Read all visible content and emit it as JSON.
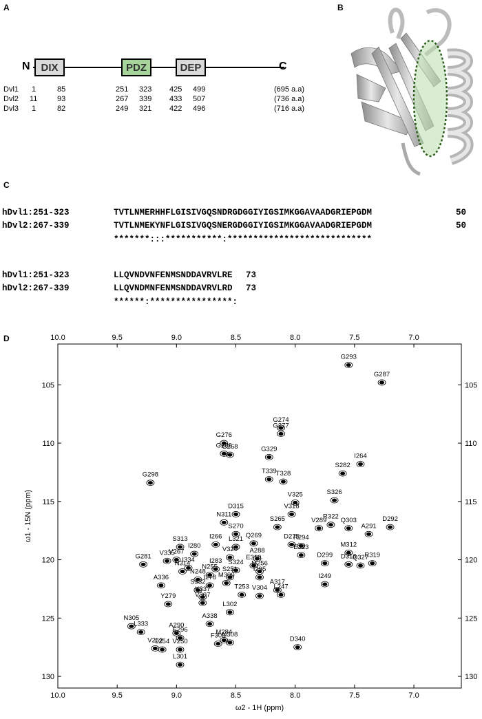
{
  "panels": {
    "a": "A",
    "b": "B",
    "c": "C",
    "d": "D"
  },
  "panel_a": {
    "n_label": "N",
    "c_label": "C",
    "domains": [
      {
        "name": "DIX",
        "color": "#d9d9d9"
      },
      {
        "name": "PDZ",
        "color": "#a6d49a"
      },
      {
        "name": "DEP",
        "color": "#d9d9d9"
      }
    ],
    "rows": [
      {
        "name": "Dvl1",
        "dix": [
          "1",
          "85"
        ],
        "pdz": [
          "251",
          "323"
        ],
        "dep": [
          "425",
          "499"
        ],
        "len": "(695 a.a)"
      },
      {
        "name": "Dvl2",
        "dix": [
          "11",
          "93"
        ],
        "pdz": [
          "267",
          "339"
        ],
        "dep": [
          "433",
          "507"
        ],
        "len": "(736 a.a)"
      },
      {
        "name": "Dvl3",
        "dix": [
          "1",
          "82"
        ],
        "pdz": [
          "249",
          "321"
        ],
        "dep": [
          "422",
          "496"
        ],
        "len": "(716 a.a)"
      }
    ]
  },
  "panel_c": {
    "block1": [
      {
        "label": "hDvl1:251-323",
        "seq": "TVTLNMERHHFLGISIVGQSNDRGDGGIYIGSIMKGGAVAADGRIEPGDM",
        "num": "50"
      },
      {
        "label": "hDvl2:267-339",
        "seq": "TVTLNMEKYNFLGISIVGQSNERGDGGIYIGSIMKGGAVAADGRIEPGDM",
        "num": "50"
      }
    ],
    "cons1": "*******:::***********:****************************",
    "block2": [
      {
        "label": "hDvl1:251-323",
        "seq": "LLQVNDVNFENMSNDDAVRVLRE",
        "num": "73"
      },
      {
        "label": "hDvl2:267-339",
        "seq": "LLQVNDMNFENMSNDDAVRVLRD",
        "num": "73"
      }
    ],
    "cons2": "******:****************:"
  },
  "chart_data": {
    "type": "scatter",
    "title": "",
    "xlabel": "ω2 - 1H (ppm)",
    "ylabel": "ω1 - 15N (ppm)",
    "xlim": [
      10.0,
      6.6
    ],
    "ylim": [
      101.5,
      131.0
    ],
    "x_ticks": [
      10.0,
      9.5,
      9.0,
      8.5,
      8.0,
      7.5,
      7.0
    ],
    "x_tick_labels": [
      "10.0",
      "9.5",
      "9.0",
      "8.5",
      "8.0",
      "7.5",
      "7.0"
    ],
    "y_ticks": [
      105,
      110,
      115,
      120,
      125,
      130
    ],
    "y_tick_labels": [
      "105",
      "110",
      "115",
      "120",
      "125",
      "130"
    ],
    "peaks": [
      {
        "label": "G293",
        "x": 7.55,
        "y": 103.3
      },
      {
        "label": "G287",
        "x": 7.27,
        "y": 104.8
      },
      {
        "label": "G274",
        "x": 8.12,
        "y": 108.7
      },
      {
        "label": "G277",
        "x": 8.12,
        "y": 109.2
      },
      {
        "label": "G276",
        "x": 8.6,
        "y": 110.0
      },
      {
        "label": "G286",
        "x": 8.6,
        "y": 110.9
      },
      {
        "label": "G268",
        "x": 8.55,
        "y": 111.0
      },
      {
        "label": "G329",
        "x": 8.22,
        "y": 111.2
      },
      {
        "label": "I264",
        "x": 7.45,
        "y": 111.8
      },
      {
        "label": "G298",
        "x": 9.22,
        "y": 113.4
      },
      {
        "label": "T339",
        "x": 8.22,
        "y": 113.1
      },
      {
        "label": "T328",
        "x": 8.1,
        "y": 113.3
      },
      {
        "label": "S282",
        "x": 7.6,
        "y": 112.6
      },
      {
        "label": "S326",
        "x": 7.67,
        "y": 114.9
      },
      {
        "label": "V325",
        "x": 8.0,
        "y": 115.1
      },
      {
        "label": "D315",
        "x": 8.5,
        "y": 116.1
      },
      {
        "label": "V318",
        "x": 8.03,
        "y": 116.1
      },
      {
        "label": "N311",
        "x": 8.6,
        "y": 116.8
      },
      {
        "label": "S265",
        "x": 8.15,
        "y": 117.2
      },
      {
        "label": "R322",
        "x": 7.7,
        "y": 117.0
      },
      {
        "label": "V289",
        "x": 7.8,
        "y": 117.3
      },
      {
        "label": "Q303",
        "x": 7.55,
        "y": 117.3
      },
      {
        "label": "D292",
        "x": 7.2,
        "y": 117.2
      },
      {
        "label": "S270",
        "x": 8.5,
        "y": 117.8
      },
      {
        "label": "Q269",
        "x": 8.35,
        "y": 118.6
      },
      {
        "label": "S313",
        "x": 8.97,
        "y": 118.9
      },
      {
        "label": "I266",
        "x": 8.67,
        "y": 118.7
      },
      {
        "label": "L321",
        "x": 8.5,
        "y": 118.9
      },
      {
        "label": "A291",
        "x": 7.38,
        "y": 117.8
      },
      {
        "label": "D275",
        "x": 8.03,
        "y": 118.7
      },
      {
        "label": "R294",
        "x": 7.95,
        "y": 118.8
      },
      {
        "label": "M312",
        "x": 7.55,
        "y": 119.4
      },
      {
        "label": "V335",
        "x": 9.08,
        "y": 120.1
      },
      {
        "label": "V267",
        "x": 9.0,
        "y": 120.0
      },
      {
        "label": "I280",
        "x": 8.85,
        "y": 119.5
      },
      {
        "label": "V320",
        "x": 8.55,
        "y": 119.8
      },
      {
        "label": "A288",
        "x": 8.32,
        "y": 119.9
      },
      {
        "label": "E323",
        "x": 7.95,
        "y": 119.6
      },
      {
        "label": "R319",
        "x": 7.35,
        "y": 120.3
      },
      {
        "label": "G281",
        "x": 9.28,
        "y": 120.4
      },
      {
        "label": "I334",
        "x": 8.9,
        "y": 120.7
      },
      {
        "label": "E310",
        "x": 8.35,
        "y": 120.5
      },
      {
        "label": "D299",
        "x": 7.75,
        "y": 120.3
      },
      {
        "label": "D316",
        "x": 7.55,
        "y": 120.4
      },
      {
        "label": "Q327",
        "x": 7.45,
        "y": 120.5
      },
      {
        "label": "N314",
        "x": 8.95,
        "y": 121.0
      },
      {
        "label": "I283",
        "x": 8.67,
        "y": 120.8
      },
      {
        "label": "S324",
        "x": 8.5,
        "y": 120.9
      },
      {
        "label": "N255",
        "x": 8.72,
        "y": 121.3
      },
      {
        "label": "M256",
        "x": 8.3,
        "y": 121.0
      },
      {
        "label": "S251",
        "x": 8.55,
        "y": 121.5
      },
      {
        "label": "I295",
        "x": 8.3,
        "y": 121.5
      },
      {
        "label": "N248",
        "x": 8.82,
        "y": 121.7
      },
      {
        "label": "A336",
        "x": 9.13,
        "y": 122.2
      },
      {
        "label": "I278",
        "x": 8.72,
        "y": 122.2
      },
      {
        "label": "M300",
        "x": 8.58,
        "y": 122.0
      },
      {
        "label": "I249",
        "x": 7.75,
        "y": 122.1
      },
      {
        "label": "S332",
        "x": 8.82,
        "y": 122.6
      },
      {
        "label": "A317",
        "x": 8.15,
        "y": 122.6
      },
      {
        "label": "L247",
        "x": 8.12,
        "y": 123.0
      },
      {
        "label": "Y279",
        "x": 9.07,
        "y": 123.8
      },
      {
        "label": "K337",
        "x": 8.78,
        "y": 123.2
      },
      {
        "label": "T253",
        "x": 8.45,
        "y": 123.0
      },
      {
        "label": "V304",
        "x": 8.3,
        "y": 123.1
      },
      {
        "label": "V307",
        "x": 8.78,
        "y": 123.7
      },
      {
        "label": "N305",
        "x": 9.38,
        "y": 125.7
      },
      {
        "label": "L302",
        "x": 8.55,
        "y": 124.5
      },
      {
        "label": "A338",
        "x": 8.72,
        "y": 125.5
      },
      {
        "label": "L333",
        "x": 9.3,
        "y": 126.2
      },
      {
        "label": "A290",
        "x": 9.0,
        "y": 126.3
      },
      {
        "label": "E296",
        "x": 8.97,
        "y": 126.7
      },
      {
        "label": "M284",
        "x": 8.6,
        "y": 126.9
      },
      {
        "label": "N308",
        "x": 8.55,
        "y": 127.1
      },
      {
        "label": "F309",
        "x": 8.65,
        "y": 127.2
      },
      {
        "label": "V252",
        "x": 9.18,
        "y": 127.6
      },
      {
        "label": "L254",
        "x": 9.12,
        "y": 127.7
      },
      {
        "label": "V250",
        "x": 8.97,
        "y": 127.7
      },
      {
        "label": "D340",
        "x": 7.98,
        "y": 127.5
      },
      {
        "label": "L301",
        "x": 8.97,
        "y": 129.0
      }
    ]
  }
}
